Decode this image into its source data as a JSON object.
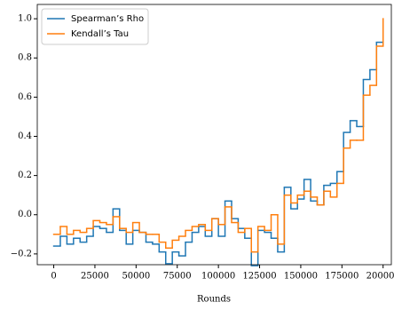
{
  "chart_data": {
    "type": "step",
    "xlabel": "Rounds",
    "x": [
      0,
      4000,
      8000,
      12000,
      16000,
      20000,
      24000,
      28000,
      32000,
      36000,
      40000,
      44000,
      48000,
      52000,
      56000,
      60000,
      64000,
      68000,
      72000,
      76000,
      80000,
      84000,
      88000,
      92000,
      96000,
      100000,
      104000,
      108000,
      112000,
      116000,
      120000,
      124000,
      128000,
      132000,
      136000,
      140000,
      144000,
      148000,
      152000,
      156000,
      160000,
      164000,
      168000,
      172000,
      176000,
      180000,
      184000,
      188000,
      192000,
      196000,
      200000
    ],
    "series": [
      {
        "name": "Spearman’s Rho",
        "color": "#1f77b4",
        "values": [
          -0.16,
          -0.11,
          -0.15,
          -0.12,
          -0.14,
          -0.11,
          -0.06,
          -0.07,
          -0.09,
          0.03,
          -0.08,
          -0.15,
          -0.08,
          -0.09,
          -0.14,
          -0.15,
          -0.19,
          -0.25,
          -0.19,
          -0.21,
          -0.14,
          -0.09,
          -0.06,
          -0.11,
          -0.02,
          -0.11,
          0.07,
          -0.02,
          -0.07,
          -0.12,
          -0.26,
          -0.08,
          -0.09,
          -0.12,
          -0.19,
          0.14,
          0.03,
          0.08,
          0.18,
          0.07,
          0.05,
          0.15,
          0.16,
          0.22,
          0.42,
          0.48,
          0.45,
          0.69,
          0.74,
          0.88,
          0.88
        ]
      },
      {
        "name": "Kendall’s Tau",
        "color": "#ff7f0e",
        "values": [
          -0.1,
          -0.06,
          -0.1,
          -0.08,
          -0.09,
          -0.07,
          -0.03,
          -0.04,
          -0.05,
          -0.01,
          -0.07,
          -0.09,
          -0.04,
          -0.09,
          -0.1,
          -0.1,
          -0.14,
          -0.17,
          -0.13,
          -0.11,
          -0.08,
          -0.06,
          -0.05,
          -0.08,
          -0.02,
          -0.05,
          0.04,
          -0.04,
          -0.09,
          -0.07,
          -0.19,
          -0.06,
          -0.08,
          0.0,
          -0.15,
          0.1,
          0.06,
          0.1,
          0.12,
          0.09,
          0.05,
          0.12,
          0.09,
          0.16,
          0.34,
          0.38,
          0.38,
          0.61,
          0.66,
          0.86,
          1.0
        ]
      }
    ],
    "xlim": [
      -10000,
      205000
    ],
    "ylim": [
      -0.255,
      1.073
    ],
    "xticks": [
      0,
      25000,
      50000,
      75000,
      100000,
      125000,
      150000,
      175000,
      200000
    ],
    "yticks": [
      {
        "value": -0.2,
        "label": "−0.2"
      },
      {
        "value": 0.0,
        "label": "0.0"
      },
      0.2,
      0.4,
      0.6,
      0.8,
      {
        "value": 1.0,
        "label": "1.0"
      }
    ],
    "legend": "upper left"
  }
}
